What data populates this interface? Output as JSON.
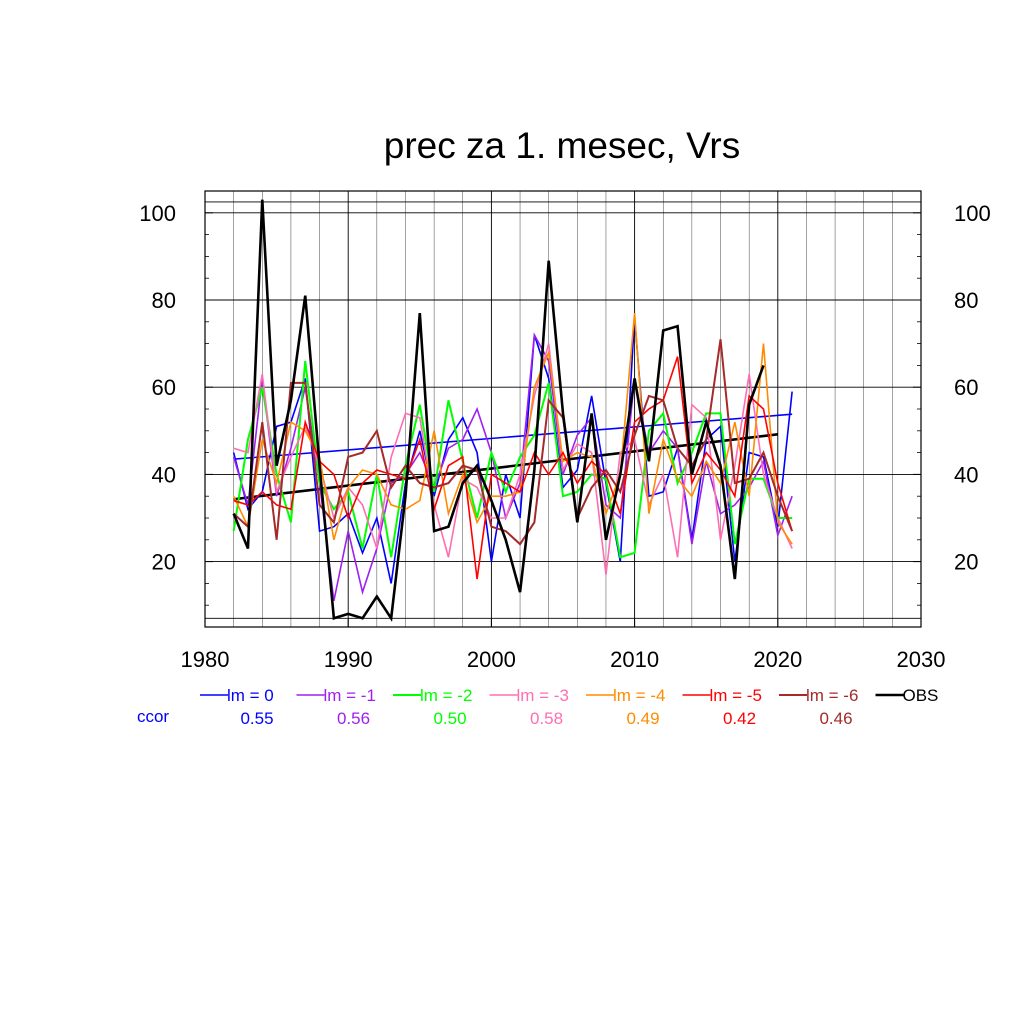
{
  "chart_data": {
    "type": "line",
    "title": "prec za 1. mesec, Vrs",
    "xlabel": "",
    "ylabel": "",
    "xlim": [
      1980,
      2030
    ],
    "ylim": [
      5,
      105
    ],
    "x_ticks": [
      1980,
      1990,
      2000,
      2010,
      2020,
      2030
    ],
    "y_ticks": [
      20,
      40,
      60,
      80,
      100
    ],
    "grid": true,
    "legend_position": "bottom",
    "ccor_label": "ccor",
    "x": [
      1982,
      1983,
      1984,
      1985,
      1986,
      1987,
      1988,
      1989,
      1990,
      1991,
      1992,
      1993,
      1994,
      1995,
      1996,
      1997,
      1998,
      1999,
      2000,
      2001,
      2002,
      2003,
      2004,
      2005,
      2006,
      2007,
      2008,
      2009,
      2010,
      2011,
      2012,
      2013,
      2014,
      2015,
      2016,
      2017,
      2018,
      2019,
      2020,
      2021
    ],
    "series": [
      {
        "name": "lm = 0",
        "ccor": "0.55",
        "color": "#0000ff",
        "width": 1.6,
        "values": [
          45,
          32,
          36,
          51,
          52,
          62,
          27,
          28,
          31,
          22,
          30,
          15,
          38,
          50,
          35,
          48,
          53,
          45,
          20,
          40,
          30,
          72,
          62,
          37,
          41,
          58,
          38,
          20,
          76,
          35,
          36,
          46,
          25,
          48,
          51,
          20,
          45,
          44,
          28,
          59
        ]
      },
      {
        "name": "lm = -1",
        "ccor": "0.56",
        "color": "#a020f0",
        "width": 1.6,
        "values": [
          44,
          33,
          62,
          35,
          46,
          60,
          38,
          11,
          27,
          13,
          23,
          38,
          40,
          45,
          37,
          46,
          48,
          55,
          45,
          30,
          38,
          72,
          66,
          40,
          49,
          53,
          33,
          30,
          62,
          45,
          50,
          46,
          24,
          43,
          31,
          33,
          37,
          43,
          26,
          35
        ]
      },
      {
        "name": "lm = -2",
        "ccor": "0.50",
        "color": "#00ff00",
        "width": 2.0,
        "values": [
          27,
          48,
          60,
          40,
          29,
          66,
          38,
          32,
          36,
          23,
          40,
          21,
          42,
          56,
          36,
          57,
          43,
          30,
          45,
          36,
          44,
          49,
          61,
          35,
          36,
          40,
          39,
          21,
          22,
          50,
          54,
          38,
          45,
          54,
          54,
          24,
          39,
          39,
          30,
          30
        ]
      },
      {
        "name": "lm = -3",
        "ccor": "0.58",
        "color": "#ff6eb4",
        "width": 1.6,
        "values": [
          46,
          45,
          63,
          36,
          44,
          51,
          42,
          30,
          37,
          33,
          23,
          44,
          54,
          53,
          33,
          21,
          39,
          37,
          30,
          30,
          40,
          58,
          70,
          41,
          47,
          45,
          17,
          45,
          48,
          33,
          40,
          21,
          56,
          53,
          25,
          42,
          63,
          40,
          30,
          23
        ]
      },
      {
        "name": "lm = -4",
        "ccor": "0.49",
        "color": "#ff8c00",
        "width": 1.6,
        "values": [
          35,
          28,
          48,
          38,
          52,
          50,
          44,
          25,
          37,
          41,
          40,
          33,
          32,
          34,
          50,
          31,
          40,
          29,
          35,
          35,
          36,
          60,
          68,
          43,
          45,
          44,
          31,
          40,
          77,
          31,
          48,
          39,
          35,
          43,
          38,
          52,
          35,
          70,
          29,
          24
        ]
      },
      {
        "name": "lm = -5",
        "ccor": "0.42",
        "color": "#ff0000",
        "width": 1.6,
        "values": [
          34,
          33,
          36,
          33,
          32,
          52,
          43,
          40,
          30,
          38,
          41,
          40,
          39,
          48,
          32,
          42,
          44,
          16,
          40,
          38,
          36,
          45,
          40,
          45,
          38,
          43,
          40,
          31,
          52,
          55,
          57,
          67,
          38,
          45,
          41,
          35,
          58,
          55,
          38,
          27
        ]
      },
      {
        "name": "lm = -6",
        "ccor": "0.46",
        "color": "#a52a2a",
        "width": 2.0,
        "values": [
          31,
          28,
          52,
          25,
          61,
          61,
          33,
          29,
          44,
          45,
          50,
          37,
          42,
          38,
          37,
          38,
          42,
          41,
          28,
          27,
          24,
          29,
          57,
          53,
          30,
          37,
          41,
          36,
          49,
          58,
          57,
          46,
          42,
          48,
          71,
          38,
          39,
          45,
          35,
          27
        ]
      },
      {
        "name": "OBS",
        "ccor": "",
        "color": "#000000",
        "width": 2.6,
        "values": [
          31,
          23,
          103,
          42,
          57,
          81,
          42,
          7,
          8,
          7,
          12,
          7,
          35,
          77,
          27,
          28,
          38,
          42,
          34,
          25,
          13,
          41,
          89,
          54,
          29,
          54,
          25,
          40,
          62,
          43,
          73,
          74,
          40,
          52,
          42,
          16,
          56,
          65,
          null,
          null
        ]
      }
    ],
    "trend_lines": [
      {
        "series": "lm = 0",
        "color": "#0000ff",
        "width": 1.6,
        "x": [
          1982,
          2021
        ],
        "y": [
          43.5,
          53.8
        ]
      },
      {
        "series": "OBS",
        "color": "#000000",
        "width": 2.6,
        "x": [
          1982,
          2020
        ],
        "y": [
          34.3,
          49.2
        ]
      }
    ]
  }
}
